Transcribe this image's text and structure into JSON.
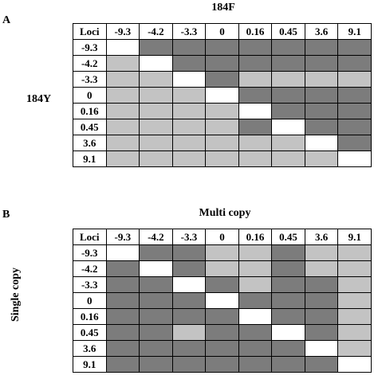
{
  "panel_a": {
    "label": "A",
    "column_title": "184F",
    "row_title": "184Y",
    "corner": "Loci",
    "columns": [
      "-9.3",
      "-4.2",
      "-3.3",
      "0",
      "0.16",
      "0.45",
      "3.6",
      "9.1"
    ],
    "rows": [
      {
        "label": "-9.3",
        "cells": [
          "white",
          "dark",
          "dark",
          "dark",
          "dark",
          "dark",
          "dark",
          "dark"
        ]
      },
      {
        "label": "-4.2",
        "cells": [
          "light",
          "white",
          "dark",
          "dark",
          "dark",
          "dark",
          "dark",
          "dark"
        ]
      },
      {
        "label": "-3.3",
        "cells": [
          "light",
          "light",
          "white",
          "dark",
          "light",
          "light",
          "light",
          "light"
        ]
      },
      {
        "label": "0",
        "cells": [
          "light",
          "light",
          "light",
          "white",
          "dark",
          "dark",
          "dark",
          "dark"
        ]
      },
      {
        "label": "0.16",
        "cells": [
          "light",
          "light",
          "light",
          "light",
          "white",
          "dark",
          "dark",
          "dark"
        ]
      },
      {
        "label": "0.45",
        "cells": [
          "light",
          "light",
          "light",
          "light",
          "dark",
          "white",
          "dark",
          "dark"
        ]
      },
      {
        "label": "3.6",
        "cells": [
          "light",
          "light",
          "light",
          "light",
          "light",
          "light",
          "white",
          "dark"
        ]
      },
      {
        "label": "9.1",
        "cells": [
          "light",
          "light",
          "light",
          "light",
          "light",
          "light",
          "light",
          "white"
        ]
      }
    ]
  },
  "panel_b": {
    "label": "B",
    "column_title": "Multi copy",
    "row_title": "Single copy",
    "corner": "Loci",
    "columns": [
      "-9.3",
      "-4.2",
      "-3.3",
      "0",
      "0.16",
      "0.45",
      "3.6",
      "9.1"
    ],
    "rows": [
      {
        "label": "-9.3",
        "cells": [
          "white",
          "dark",
          "dark",
          "light",
          "light",
          "dark",
          "light",
          "light"
        ]
      },
      {
        "label": "-4.2",
        "cells": [
          "dark",
          "white",
          "dark",
          "light",
          "light",
          "dark",
          "light",
          "light"
        ]
      },
      {
        "label": "-3.3",
        "cells": [
          "dark",
          "dark",
          "white",
          "dark",
          "light",
          "dark",
          "dark",
          "light"
        ]
      },
      {
        "label": "0",
        "cells": [
          "dark",
          "dark",
          "dark",
          "white",
          "dark",
          "dark",
          "dark",
          "light"
        ]
      },
      {
        "label": "0.16",
        "cells": [
          "dark",
          "dark",
          "dark",
          "dark",
          "white",
          "dark",
          "dark",
          "light"
        ]
      },
      {
        "label": "0.45",
        "cells": [
          "dark",
          "dark",
          "light",
          "dark",
          "dark",
          "white",
          "dark",
          "light"
        ]
      },
      {
        "label": "3.6",
        "cells": [
          "dark",
          "dark",
          "dark",
          "dark",
          "dark",
          "dark",
          "white",
          "light"
        ]
      },
      {
        "label": "9.1",
        "cells": [
          "dark",
          "dark",
          "dark",
          "dark",
          "dark",
          "dark",
          "dark",
          "white"
        ]
      }
    ]
  },
  "colors": {
    "dark": "#7c7c7c",
    "light": "#c3c3c3",
    "white": "#ffffff"
  }
}
